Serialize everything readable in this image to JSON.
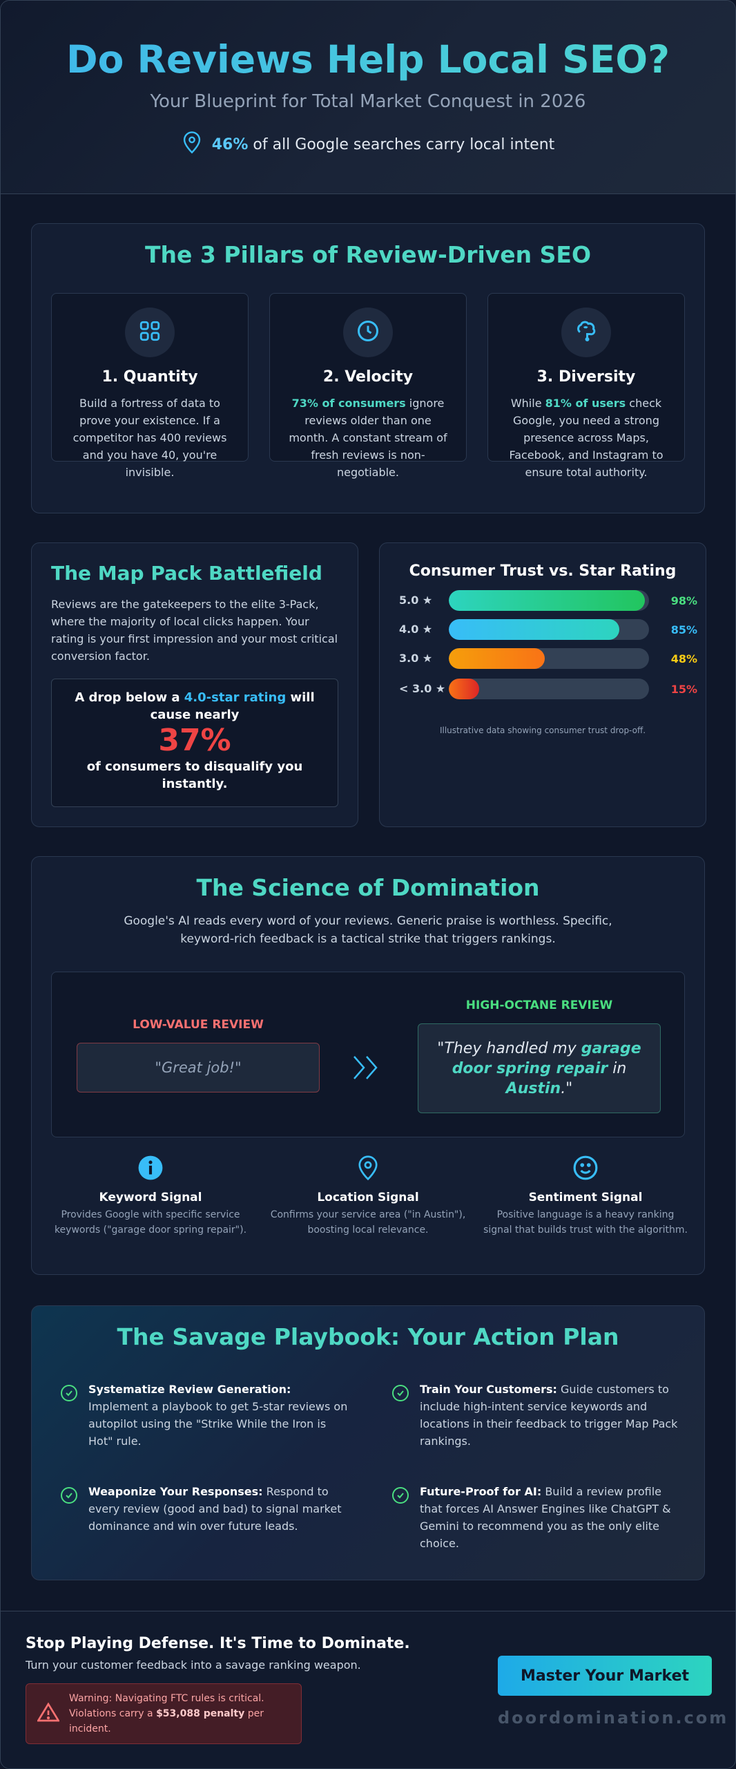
{
  "hero": {
    "title": "Do Reviews Help Local SEO?",
    "subtitle": "Your Blueprint for Total Market Conquest in 2026",
    "stat_pct": "46%",
    "stat_text": "of all Google searches carry local intent"
  },
  "pillars": {
    "title": "The 3 Pillars of Review-Driven SEO",
    "items": [
      {
        "icon": "grid-icon",
        "title": "1. Quantity",
        "pre": "",
        "highlight": "",
        "text": "Build a fortress of data to prove your existence. If a competitor has 400 reviews and you have 40, you're invisible."
      },
      {
        "icon": "clock-icon",
        "title": "2. Velocity",
        "pre": "",
        "highlight": "73% of consumers",
        "text": " ignore reviews older than one month. A constant stream of fresh reviews is non-negotiable."
      },
      {
        "icon": "brain-icon",
        "title": "3. Diversity",
        "pre": "While ",
        "highlight": "81% of users",
        "text": " check Google, you need a strong presence across Maps, Facebook, and Instagram to ensure total authority."
      }
    ]
  },
  "map_pack": {
    "title": "The Map Pack Battlefield",
    "body": "Reviews are the gatekeepers to the elite 3-Pack, where the majority of local clicks happen. Your rating is your first impression and your most critical conversion factor.",
    "callout_pre": "A drop below a ",
    "callout_hl": "4.0-star rating",
    "callout_post": " will cause nearly",
    "callout_pct": "37%",
    "callout_tail": "of consumers to disqualify you instantly."
  },
  "chart_data": {
    "type": "bar",
    "title": "Consumer Trust vs. Star Rating",
    "categories": [
      "5.0 ★",
      "4.0 ★",
      "3.0 ★",
      "< 3.0 ★"
    ],
    "values": [
      98,
      85,
      48,
      15
    ],
    "value_labels": [
      "98%",
      "85%",
      "48%",
      "15%"
    ],
    "ylim": [
      0,
      100
    ],
    "colors": [
      "#4ade80",
      "#38bdf8",
      "#facc15",
      "#ef4444"
    ],
    "note": "Illustrative data showing consumer trust drop-off."
  },
  "science": {
    "title": "The Science of Domination",
    "intro": "Google's AI reads every word of your reviews. Generic praise is worthless. Specific, keyword-rich feedback is a tactical strike that triggers rankings.",
    "low_label": "LOW-VALUE REVIEW",
    "low_text": "\"Great job!\"",
    "high_label": "HIGH-OCTANE REVIEW",
    "high_q1": "\"They handled my ",
    "high_kw1": "garage door spring repair",
    "high_q2": " in ",
    "high_kw2": "Austin",
    "high_q3": ".\"",
    "signals": [
      {
        "icon": "info-icon",
        "title": "Keyword Signal",
        "text": "Provides Google with specific service keywords (\"garage door spring repair\")."
      },
      {
        "icon": "location-pin-icon",
        "title": "Location Signal",
        "text": "Confirms your service area (\"in Austin\"), boosting local relevance."
      },
      {
        "icon": "smiley-icon",
        "title": "Sentiment Signal",
        "text": "Positive language is a heavy ranking signal that builds trust with the algorithm."
      }
    ]
  },
  "playbook": {
    "title": "The Savage Playbook: Your Action Plan",
    "items": [
      {
        "bold": "Systematize Review Generation:",
        "text": " Implement a playbook to get 5-star reviews on autopilot using the \"Strike While the Iron is Hot\" rule."
      },
      {
        "bold": "Train Your Customers:",
        "text": " Guide customers to include high-intent service keywords and locations in their feedback to trigger Map Pack rankings."
      },
      {
        "bold": "Weaponize Your Responses:",
        "text": " Respond to every review (good and bad) to signal market dominance and win over future leads."
      },
      {
        "bold": "Future-Proof for AI:",
        "text": " Build a review profile that forces AI Answer Engines like ChatGPT & Gemini to recommend you as the only elite choice."
      }
    ]
  },
  "footer": {
    "headline": "Stop Playing Defense. It's Time to Dominate.",
    "sub": "Turn your customer feedback into a savage ranking weapon.",
    "warn_pre": "Warning: Navigating FTC rules is critical. Violations carry a ",
    "warn_bold": "$53,088 penalty",
    "warn_post": " per incident.",
    "cta": "Master Your Market",
    "domain": "doordomination.com"
  }
}
